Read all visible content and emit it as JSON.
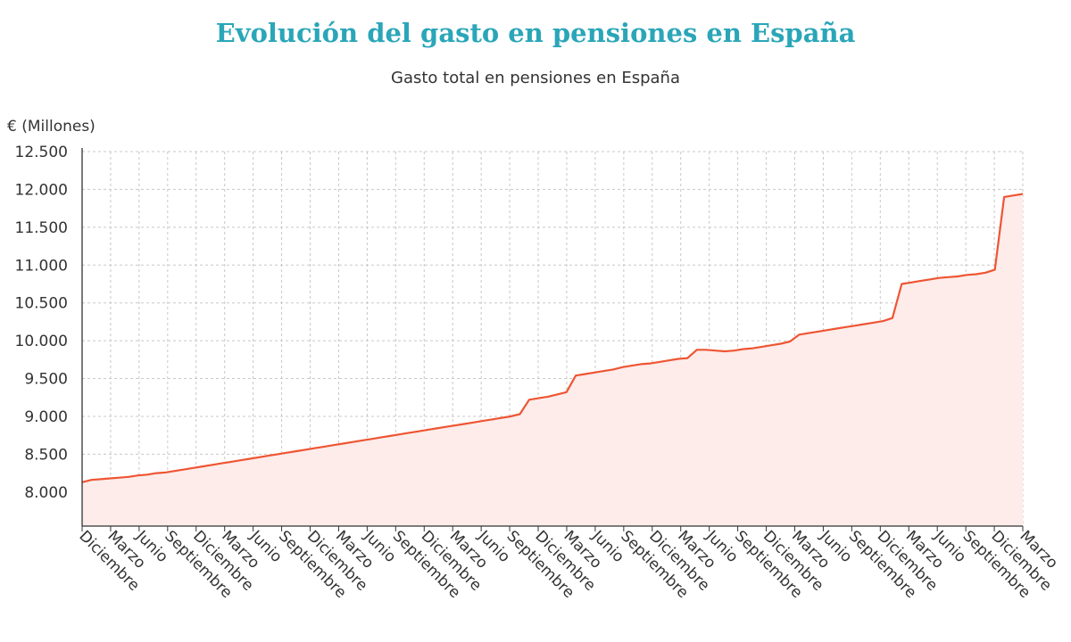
{
  "chart_data": {
    "type": "area",
    "title": "Evolución del gasto en pensiones en España",
    "subtitle": "Gasto total en pensiones en España",
    "ylabel": "€ (Millones)",
    "xlabel": "",
    "ylim": [
      7550,
      12500
    ],
    "y_ticks": [
      8000,
      8500,
      9000,
      9500,
      10000,
      10500,
      11000,
      11500,
      12000,
      12500
    ],
    "y_tick_labels": [
      "8.000",
      "8.500",
      "9.000",
      "9.500",
      "10.000",
      "10.500",
      "11.000",
      "11.500",
      "12.000",
      "12.500"
    ],
    "x_tick_labels": [
      "Diciembre",
      "Marzo",
      "Junio",
      "Septiembre",
      "Diciembre",
      "Marzo",
      "Junio",
      "Septiembre",
      "Diciembre",
      "Marzo",
      "Junio",
      "Septiembre",
      "Diciembre",
      "Marzo",
      "Junio",
      "Septiembre",
      "Diciembre",
      "Marzo",
      "Junio",
      "Septiembre",
      "Diciembre",
      "Marzo",
      "Junio",
      "Septiembre",
      "Diciembre",
      "Marzo",
      "Junio",
      "Septiembre",
      "Diciembre",
      "Marzo",
      "Junio",
      "Septiembre",
      "Diciembre",
      "Marzo"
    ],
    "grid": true,
    "line_color": "#ee5533",
    "fill_color": "#fdecea",
    "series": [
      {
        "values": [
          8130,
          8160,
          8170,
          8180,
          8190,
          8200,
          8220,
          8230,
          8250,
          8260,
          8280,
          8300,
          8320,
          8340,
          8360,
          8380,
          8400,
          8420,
          8440,
          8460,
          8480,
          8500,
          8520,
          8540,
          8560,
          8580,
          8600,
          8620,
          8640,
          8660,
          8680,
          8700,
          8720,
          8740,
          8760,
          8780,
          8800,
          8820,
          8840,
          8860,
          8880,
          8900,
          8920,
          8940,
          8960,
          8980,
          9000,
          9030,
          9220,
          9240,
          9260,
          9290,
          9320,
          9540,
          9560,
          9580,
          9600,
          9620,
          9650,
          9670,
          9690,
          9700,
          9720,
          9740,
          9760,
          9770,
          9880,
          9880,
          9870,
          9860,
          9870,
          9890,
          9900,
          9920,
          9940,
          9960,
          9990,
          10080,
          10100,
          10120,
          10140,
          10160,
          10180,
          10200,
          10220,
          10240,
          10260,
          10300,
          10750,
          10770,
          10790,
          10810,
          10830,
          10840,
          10850,
          10870,
          10880,
          10900,
          10940,
          11900,
          11920,
          11940
        ]
      }
    ]
  }
}
